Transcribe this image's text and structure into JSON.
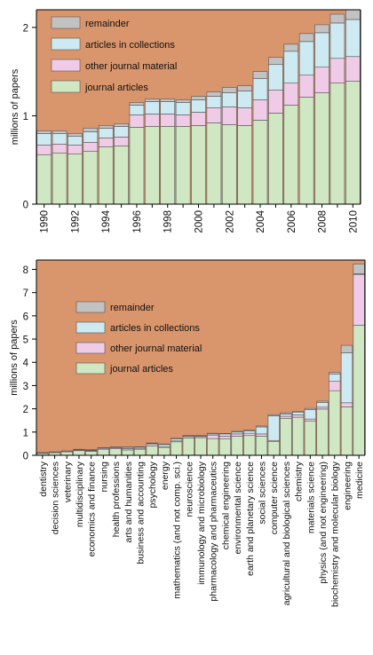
{
  "colors": {
    "background": "#D9956C",
    "journal_articles": "#CFE8C3",
    "other_journal_material": "#EFCBE7",
    "articles_in_collections": "#CDEAF2",
    "remainder": "#C2C2C2",
    "bar_edge": "#555555"
  },
  "chart_data": [
    {
      "type": "bar",
      "stacked": true,
      "title": "",
      "xlabel": "",
      "ylabel": "millions of papers",
      "ylim": [
        0,
        2.2
      ],
      "yticks": [
        0,
        1,
        2
      ],
      "grid": false,
      "legend_position": "top-left",
      "categories": [
        "1990",
        "1991",
        "1992",
        "1993",
        "1994",
        "1995",
        "1996",
        "1997",
        "1998",
        "1999",
        "2000",
        "2001",
        "2002",
        "2003",
        "2004",
        "2005",
        "2006",
        "2007",
        "2008",
        "2009",
        "2010"
      ],
      "xtick_labels": [
        "1990",
        "",
        "1992",
        "",
        "1994",
        "",
        "1996",
        "",
        "1998",
        "",
        "2000",
        "",
        "2002",
        "",
        "2004",
        "",
        "2006",
        "",
        "2008",
        "",
        "2010"
      ],
      "series": [
        {
          "name": "journal articles",
          "color_key": "journal_articles",
          "values": [
            0.56,
            0.58,
            0.57,
            0.6,
            0.65,
            0.66,
            0.87,
            0.88,
            0.88,
            0.88,
            0.89,
            0.92,
            0.9,
            0.89,
            0.95,
            1.03,
            1.12,
            1.21,
            1.26,
            1.37,
            1.39
          ]
        },
        {
          "name": "other journal material",
          "color_key": "other_journal_material",
          "values": [
            0.11,
            0.1,
            0.1,
            0.1,
            0.1,
            0.1,
            0.14,
            0.14,
            0.14,
            0.13,
            0.15,
            0.17,
            0.2,
            0.2,
            0.23,
            0.26,
            0.25,
            0.25,
            0.29,
            0.28,
            0.28
          ]
        },
        {
          "name": "articles in collections",
          "color_key": "articles_in_collections",
          "values": [
            0.13,
            0.12,
            0.1,
            0.12,
            0.11,
            0.12,
            0.11,
            0.14,
            0.14,
            0.14,
            0.14,
            0.13,
            0.16,
            0.19,
            0.24,
            0.29,
            0.36,
            0.38,
            0.39,
            0.4,
            0.42
          ]
        },
        {
          "name": "remainder",
          "color_key": "remainder",
          "values": [
            0.03,
            0.03,
            0.03,
            0.04,
            0.03,
            0.03,
            0.03,
            0.03,
            0.03,
            0.03,
            0.04,
            0.05,
            0.06,
            0.06,
            0.08,
            0.08,
            0.08,
            0.09,
            0.09,
            0.1,
            0.11
          ]
        }
      ]
    },
    {
      "type": "bar",
      "stacked": true,
      "title": "",
      "xlabel": "",
      "ylabel": "millions of papers",
      "ylim": [
        0,
        8.4
      ],
      "yticks": [
        0,
        1,
        2,
        3,
        4,
        5,
        6,
        7,
        8
      ],
      "grid": false,
      "legend_position": "center-left",
      "categories": [
        "dentistry",
        "decision sciences",
        "veterinary",
        "multidisciplinary",
        "economics and finance",
        "nursing",
        "health professions",
        "arts and humanities",
        "business and accounting",
        "psychology",
        "energy",
        "mathematics (and not comp. sci.)",
        "neuroscience",
        "immunology and microbiology",
        "pharmacology and pharmaceutics",
        "chemical engineering",
        "environmental science",
        "earth and planetary science",
        "social sciences",
        "computer science",
        "agricultural and biological sciences",
        "chemistry",
        "materials science",
        "physics (and not engineering)",
        "biochemistry and molecular biology",
        "engineering",
        "medicine"
      ],
      "series": [
        {
          "name": "journal articles",
          "color_key": "journal_articles",
          "values": [
            0.08,
            0.11,
            0.15,
            0.2,
            0.17,
            0.26,
            0.28,
            0.23,
            0.26,
            0.4,
            0.34,
            0.58,
            0.75,
            0.76,
            0.72,
            0.7,
            0.82,
            0.85,
            0.82,
            0.6,
            1.58,
            1.64,
            1.48,
            1.99,
            2.78,
            2.08,
            5.6
          ]
        },
        {
          "name": "other journal material",
          "color_key": "other_journal_material",
          "values": [
            0.03,
            0.03,
            0.03,
            0.03,
            0.03,
            0.04,
            0.05,
            0.06,
            0.04,
            0.07,
            0.02,
            0.04,
            0.06,
            0.05,
            0.15,
            0.12,
            0.1,
            0.1,
            0.1,
            0.04,
            0.1,
            0.1,
            0.08,
            0.08,
            0.4,
            0.18,
            2.18
          ]
        },
        {
          "name": "articles in collections",
          "color_key": "articles_in_collections",
          "values": [
            0.01,
            0.01,
            0.01,
            0.02,
            0.02,
            0.02,
            0.02,
            0.05,
            0.05,
            0.04,
            0.1,
            0.09,
            0.03,
            0.03,
            0.05,
            0.1,
            0.08,
            0.1,
            0.3,
            1.06,
            0.1,
            0.12,
            0.4,
            0.2,
            0.32,
            2.15,
            0.03
          ]
        },
        {
          "name": "remainder",
          "color_key": "remainder",
          "values": [
            0.0,
            0.0,
            0.0,
            0.01,
            0.02,
            0.01,
            0.01,
            0.02,
            0.02,
            0.02,
            0.03,
            0.02,
            0.01,
            0.01,
            0.03,
            0.02,
            0.03,
            0.03,
            0.04,
            0.05,
            0.05,
            0.03,
            0.06,
            0.06,
            0.07,
            0.32,
            0.42
          ]
        }
      ]
    }
  ]
}
